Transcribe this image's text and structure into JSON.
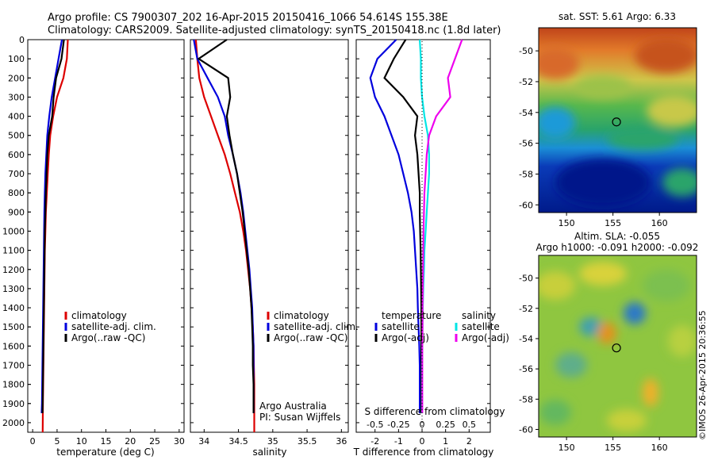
{
  "header": {
    "line1": "Argo profile: CS 7900307_202 16-Apr-2015 20150416_1066 54.614S 155.38E",
    "line2": "Climatology: CARS2009. Satellite-adjusted climatology: synTS_20150418.nc (1.8d later)"
  },
  "watermark": "©IMOS 26-Apr-2015 20:36:55",
  "depth_ticks": [
    0,
    100,
    200,
    300,
    400,
    500,
    600,
    700,
    800,
    900,
    1000,
    1100,
    1200,
    1300,
    1400,
    1500,
    1600,
    1700,
    1800,
    1900,
    2000
  ],
  "colors": {
    "climatology": "#dd0000",
    "satellite": "#0000dd",
    "argo": "#000000",
    "salinity_satellite": "#00e5e5",
    "salinity_argo": "#ee00ee"
  },
  "chart_data": [
    {
      "type": "line",
      "panel": "temperature",
      "xlabel": "temperature (deg C)",
      "ylabel": "",
      "xlim": [
        -1,
        31
      ],
      "ylim": [
        2050,
        0
      ],
      "xticks": [
        0,
        5,
        10,
        15,
        20,
        25,
        30
      ],
      "legend": [
        "climatology",
        "satellite-adj. clim.",
        "Argo(..raw -QC)"
      ],
      "legend_position": "lower-middle",
      "series": [
        {
          "name": "climatology",
          "color": "#dd0000",
          "x": [
            7.2,
            7.0,
            6.3,
            5.0,
            4.2,
            3.6,
            3.3,
            3.1,
            2.9,
            2.7,
            2.6,
            2.5,
            2.45,
            2.4,
            2.35,
            2.3,
            2.25,
            2.2,
            2.15,
            2.1,
            2.05
          ],
          "y": [
            0,
            100,
            200,
            300,
            400,
            500,
            600,
            700,
            800,
            900,
            1000,
            1100,
            1200,
            1300,
            1400,
            1500,
            1600,
            1700,
            1800,
            1900,
            2050
          ]
        },
        {
          "name": "satellite-adj. clim.",
          "color": "#0000dd",
          "x": [
            6.0,
            5.3,
            4.6,
            3.9,
            3.4,
            3.0,
            2.8,
            2.6,
            2.5,
            2.4,
            2.35,
            2.3,
            2.25,
            2.2,
            2.15,
            2.1,
            2.05,
            2.0,
            1.95,
            1.9,
            1.85
          ],
          "y": [
            0,
            100,
            200,
            300,
            400,
            500,
            600,
            700,
            800,
            900,
            1000,
            1100,
            1200,
            1300,
            1400,
            1500,
            1600,
            1700,
            1800,
            1900,
            1950
          ]
        },
        {
          "name": "Argo(..raw -QC)",
          "color": "#000000",
          "x": [
            6.4,
            5.9,
            4.8,
            4.3,
            4.0,
            3.3,
            3.0,
            2.85,
            2.7,
            2.6,
            2.5,
            2.45,
            2.4,
            2.35,
            2.3,
            2.25,
            2.2,
            2.15,
            2.1,
            2.05,
            2.0
          ],
          "y": [
            0,
            100,
            200,
            300,
            400,
            500,
            600,
            700,
            800,
            900,
            1000,
            1100,
            1200,
            1300,
            1400,
            1500,
            1600,
            1700,
            1800,
            1900,
            1950
          ]
        }
      ]
    },
    {
      "type": "line",
      "panel": "salinity",
      "xlabel": "salinity",
      "ylabel": "",
      "xlim": [
        33.8,
        36.1
      ],
      "ylim": [
        2050,
        0
      ],
      "xticks": [
        34,
        34.5,
        35,
        35.5,
        36
      ],
      "legend": [
        "climatology",
        "satellite-adj. clim.",
        "Argo(..raw -QC)"
      ],
      "legend_position": "lower-middle",
      "annotations": [
        "Argo Australia",
        "PI: Susan Wijffels"
      ],
      "series": [
        {
          "name": "climatology",
          "color": "#dd0000",
          "x": [
            33.88,
            33.9,
            33.93,
            34.0,
            34.1,
            34.2,
            34.3,
            34.38,
            34.45,
            34.52,
            34.57,
            34.61,
            34.64,
            34.67,
            34.69,
            34.71,
            34.72,
            34.725,
            34.73,
            34.73,
            34.73
          ],
          "y": [
            0,
            100,
            200,
            300,
            400,
            500,
            600,
            700,
            800,
            900,
            1000,
            1100,
            1200,
            1300,
            1400,
            1500,
            1600,
            1700,
            1800,
            1900,
            2050
          ]
        },
        {
          "name": "satellite-adj. clim.",
          "color": "#0000dd",
          "x": [
            33.85,
            33.9,
            34.05,
            34.2,
            34.3,
            34.35,
            34.42,
            34.48,
            34.53,
            34.57,
            34.6,
            34.63,
            34.66,
            34.68,
            34.7,
            34.71,
            34.72,
            34.72,
            34.72,
            34.72,
            34.72
          ],
          "y": [
            0,
            100,
            200,
            300,
            400,
            500,
            600,
            700,
            800,
            900,
            1000,
            1100,
            1200,
            1300,
            1400,
            1500,
            1600,
            1700,
            1800,
            1900,
            1950
          ]
        },
        {
          "name": "Argo(..raw -QC)",
          "color": "#000000",
          "x": [
            34.33,
            33.92,
            34.35,
            34.38,
            34.33,
            34.37,
            34.42,
            34.48,
            34.52,
            34.56,
            34.59,
            34.62,
            34.65,
            34.67,
            34.69,
            34.7,
            34.71,
            34.71,
            34.72,
            34.72,
            34.72
          ],
          "y": [
            0,
            100,
            200,
            300,
            400,
            500,
            600,
            700,
            800,
            900,
            1000,
            1100,
            1200,
            1300,
            1400,
            1500,
            1600,
            1700,
            1800,
            1900,
            1950
          ]
        }
      ]
    },
    {
      "type": "line",
      "panel": "difference",
      "xlabel": "T difference from climatology",
      "xlim": [
        -2.8,
        2.9
      ],
      "ylim": [
        2050,
        0
      ],
      "xticks": [
        -2,
        -1,
        0,
        1,
        2
      ],
      "top_label": "S difference from climatology",
      "top_ticks": [
        "-0.5",
        "-0.25",
        "0",
        "0.25",
        "0.5"
      ],
      "top_tick_x": [
        -2,
        -1,
        0,
        1,
        2
      ],
      "legend_groups": [
        {
          "title": "temperature",
          "entries": [
            "satellite",
            "Argo(-adj)"
          ]
        },
        {
          "title": "salinity",
          "entries": [
            "satellite",
            "Argo(-adj)"
          ]
        }
      ],
      "series": [
        {
          "name": "temperature satellite",
          "color": "#0000dd",
          "x": [
            -1.1,
            -1.9,
            -2.2,
            -2.0,
            -1.6,
            -1.3,
            -1.0,
            -0.8,
            -0.6,
            -0.45,
            -0.35,
            -0.3,
            -0.25,
            -0.2,
            -0.18,
            -0.15,
            -0.12,
            -0.1,
            -0.1,
            -0.1
          ],
          "y": [
            0,
            100,
            200,
            300,
            400,
            500,
            600,
            700,
            800,
            900,
            1000,
            1100,
            1200,
            1300,
            1400,
            1500,
            1600,
            1700,
            1800,
            1950
          ]
        },
        {
          "name": "temperature Argo(-adj)",
          "color": "#000000",
          "x": [
            -0.7,
            -1.2,
            -1.6,
            -0.8,
            -0.2,
            -0.3,
            -0.2,
            -0.15,
            -0.1,
            -0.1,
            -0.08,
            -0.06,
            -0.05,
            -0.04,
            -0.03,
            -0.03,
            -0.03,
            -0.03,
            -0.03,
            -0.03
          ],
          "y": [
            0,
            100,
            200,
            300,
            400,
            500,
            600,
            700,
            800,
            900,
            1000,
            1100,
            1200,
            1300,
            1400,
            1500,
            1600,
            1700,
            1800,
            1950
          ]
        },
        {
          "name": "salinity satellite",
          "color": "#00e5e5",
          "x": [
            -0.1,
            -0.05,
            -0.05,
            0.0,
            0.1,
            0.25,
            0.3,
            0.3,
            0.25,
            0.2,
            0.15,
            0.1,
            0.08,
            0.05,
            0.03,
            0.02,
            0.01,
            0.0,
            0.0,
            0.0
          ],
          "y": [
            0,
            100,
            200,
            300,
            400,
            500,
            600,
            700,
            800,
            900,
            1000,
            1100,
            1200,
            1300,
            1400,
            1500,
            1600,
            1700,
            1800,
            1950
          ]
        },
        {
          "name": "salinity Argo(-adj)",
          "color": "#ee00ee",
          "x": [
            1.7,
            1.4,
            1.1,
            1.2,
            0.6,
            0.3,
            0.2,
            0.15,
            0.1,
            0.08,
            0.06,
            0.05,
            0.04,
            0.03,
            0.02,
            0.02,
            0.01,
            0.01,
            0.01,
            0.01
          ],
          "y": [
            0,
            100,
            200,
            300,
            400,
            500,
            600,
            700,
            800,
            900,
            1000,
            1100,
            1200,
            1300,
            1400,
            1500,
            1600,
            1700,
            1800,
            1950
          ]
        }
      ]
    },
    {
      "type": "heatmap",
      "panel": "sst-map",
      "title": "sat. SST: 5.61  Argo: 6.33",
      "xlim": [
        147,
        164
      ],
      "ylim": [
        -60.5,
        -48.5
      ],
      "xticks": [
        150,
        155,
        160
      ],
      "yticks": [
        -50,
        -52,
        -54,
        -56,
        -58,
        -60
      ],
      "marker": {
        "lon": 155.38,
        "lat": -54.614
      }
    },
    {
      "type": "heatmap",
      "panel": "sla-map",
      "title_line1": "Altim. SLA: -0.055",
      "title_line2": "Argo h1000: -0.091 h2000: -0.092",
      "xlim": [
        147,
        164
      ],
      "ylim": [
        -60.5,
        -48.5
      ],
      "xticks": [
        150,
        155,
        160
      ],
      "yticks": [
        -50,
        -52,
        -54,
        -56,
        -58,
        -60
      ],
      "marker": {
        "lon": 155.38,
        "lat": -54.614
      }
    }
  ]
}
